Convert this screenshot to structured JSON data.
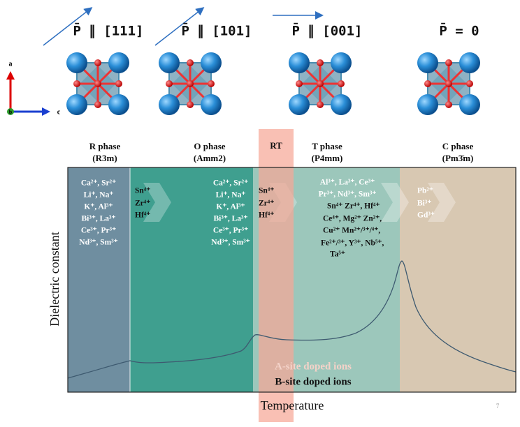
{
  "header": {
    "polarizations": [
      "P̄ ∥ [111]",
      "P̄ ∥ [101]",
      "P̄ ∥ [001]",
      "P̄ = 0"
    ],
    "axes": [
      "a",
      "b",
      "c"
    ]
  },
  "phases": [
    {
      "name": "R phase",
      "group": "(R3m)"
    },
    {
      "name": "O phase",
      "group": "(Amm2)"
    },
    {
      "name": "T phase",
      "group": "(P4mm)"
    },
    {
      "name": "C phase",
      "group": "(Pm3̄m)"
    }
  ],
  "rt_label": "RT",
  "ions": {
    "r_a_site": [
      "Ca²⁺, Sr²⁺",
      "Li⁺, Na⁺",
      "K⁺, Al³⁺",
      "Bi³⁺, La³⁺",
      "Ce³⁺, Pr³⁺",
      "Nd³⁺, Sm³⁺"
    ],
    "r_b_site": [
      "Sn⁴⁺",
      "Zr⁴⁺",
      "Hf⁴⁺"
    ],
    "o_a_site": [
      "Ca²⁺, Sr²⁺",
      "Li⁺, Na⁺",
      "K⁺, Al³⁺",
      "Bi³⁺, La³⁺",
      "Ce³⁺, Pr³⁺",
      "Nd³⁺, Sm³⁺"
    ],
    "o_b_site": [
      "Sn⁴⁺",
      "Zr⁴⁺",
      "Hf⁴⁺"
    ],
    "t_a_site": [
      "Al³⁺, La³⁺, Ce³⁺",
      "Pr³⁺, Nd³⁺, Sm³⁺"
    ],
    "t_b_site": [
      "Sn⁴⁺ Zr⁴⁺, Hf⁴⁺",
      "Ce⁴⁺, Mg²⁺ Zn²⁺,",
      "Cu²⁺ Mn²⁺/³⁺/⁴⁺,",
      "Fe²⁺/³⁺, Y³⁺, Nb⁵⁺,",
      "Ta⁵⁺"
    ],
    "c_a_site": [
      "Pb²⁺",
      "Bi³⁺",
      "Gd³⁺"
    ]
  },
  "legend": [
    "A-site doped ions",
    "B-site doped ions"
  ],
  "y_label": "Dielectric constant",
  "x_label": "Temperature",
  "page_number": "7"
}
